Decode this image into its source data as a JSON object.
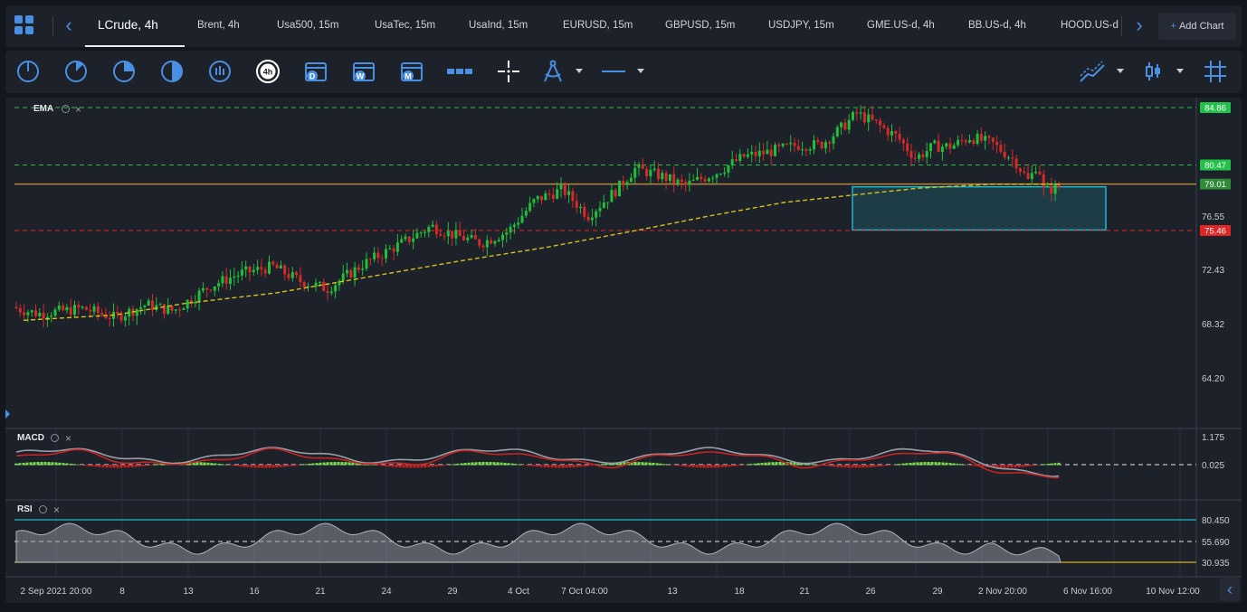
{
  "tabs": [
    {
      "label": "LCrude, 4h",
      "active": true
    },
    {
      "label": "Brent, 4h"
    },
    {
      "label": "Usa500, 15m"
    },
    {
      "label": "UsaTec, 15m"
    },
    {
      "label": "UsaInd, 15m"
    },
    {
      "label": "EURUSD, 15m"
    },
    {
      "label": "GBPUSD, 15m"
    },
    {
      "label": "USDJPY, 15m"
    },
    {
      "label": "GME.US-d, 4h"
    },
    {
      "label": "BB.US-d, 4h"
    },
    {
      "label": "HOOD.US-d"
    }
  ],
  "add_chart": {
    "plus": "+",
    "label": "Add Chart"
  },
  "toolbar": {
    "timeframe_badge": "4h",
    "calendar_day": "D",
    "calendar_week": "W",
    "calendar_month": "M"
  },
  "indicators": {
    "ema": "EMA",
    "macd": "MACD",
    "rsi": "RSI",
    "close": "×"
  },
  "price_axis": {
    "ticks": [
      "76.55",
      "72.43",
      "68.32",
      "64.20"
    ],
    "badges": [
      {
        "value": "84.86",
        "color": "#22c24a"
      },
      {
        "value": "80.47",
        "color": "#22c24a"
      },
      {
        "value": "79.01",
        "color": "#2e8b3a"
      },
      {
        "value": "75.46",
        "color": "#e02525"
      }
    ]
  },
  "macd_axis": {
    "ticks": [
      "1.175",
      "0.025"
    ]
  },
  "rsi_axis": {
    "ticks": [
      "80.450",
      "55.690",
      "30.935"
    ]
  },
  "time_axis": {
    "labels": [
      "2 Sep 2021 20:00",
      "8",
      "13",
      "16",
      "21",
      "24",
      "29",
      "4 Oct",
      "7 Oct 04:00",
      "13",
      "18",
      "21",
      "26",
      "29",
      "2 Nov 20:00",
      "6 Nov 16:00",
      "10 Nov 12:00"
    ]
  },
  "chart_data": {
    "type": "candlestick",
    "symbol": "LCrude",
    "interval": "4h",
    "levels": [
      {
        "value": 84.86,
        "style": "dashed",
        "color": "#22c24a"
      },
      {
        "value": 80.47,
        "style": "dashed",
        "color": "#22c24a"
      },
      {
        "value": 79.01,
        "style": "solid",
        "color": "#b8863b"
      },
      {
        "value": 75.46,
        "style": "dashed",
        "color": "#e02525"
      }
    ],
    "zone": {
      "price_high": 78.8,
      "price_low": 75.5,
      "color": "#1fb7c9"
    },
    "ema_color": "#d8c21a",
    "bull_color": "#1fbf3c",
    "bear_color": "#d42a2a",
    "rsi_levels": [
      80.45,
      55.69,
      30.935
    ],
    "macd_zero": 0.025
  },
  "colors": {
    "panel": "#1d2129",
    "background": "#13161d",
    "accent": "#4a90e2"
  }
}
